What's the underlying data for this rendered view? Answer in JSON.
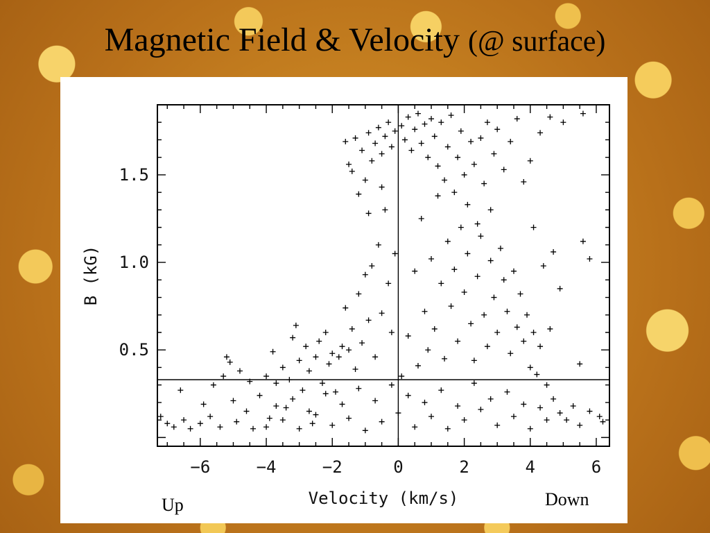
{
  "slide": {
    "title_main": "Magnetic Field & Velocity",
    "title_suffix": "(@ surface)",
    "note_up": "Up",
    "note_down": "Down"
  },
  "chart_data": {
    "type": "scatter",
    "xlabel": "Velocity (km/s)",
    "ylabel": "B (kG)",
    "xlim": [
      -7.3,
      6.4
    ],
    "ylim": [
      -0.05,
      1.9
    ],
    "x_ticks": [
      -6,
      -4,
      -2,
      0,
      2,
      4,
      6
    ],
    "y_ticks": [
      0.5,
      1.0,
      1.5
    ],
    "x_tick_labels": [
      "−6",
      "−4",
      "−2",
      "0",
      "2",
      "4",
      "6"
    ],
    "y_tick_labels": [
      "0.5",
      "1.0",
      "1.5"
    ],
    "reference_lines": {
      "vertical_x": 0,
      "horizontal_y": 0.33
    },
    "marker": "+",
    "series": [
      {
        "points": [
          [
            -7.2,
            0.12
          ],
          [
            -7.0,
            0.08
          ],
          [
            -6.8,
            0.06
          ],
          [
            -6.6,
            0.27
          ],
          [
            -6.5,
            0.1
          ],
          [
            -6.3,
            0.05
          ],
          [
            -6.0,
            0.08
          ],
          [
            -5.9,
            0.19
          ],
          [
            -5.7,
            0.12
          ],
          [
            -5.6,
            0.3
          ],
          [
            -5.4,
            0.06
          ],
          [
            -5.3,
            0.35
          ],
          [
            -5.2,
            0.46
          ],
          [
            -5.1,
            0.43
          ],
          [
            -5.0,
            0.21
          ],
          [
            -4.9,
            0.09
          ],
          [
            -4.8,
            0.38
          ],
          [
            -4.6,
            0.15
          ],
          [
            -4.5,
            0.32
          ],
          [
            -4.4,
            0.05
          ],
          [
            -4.2,
            0.24
          ],
          [
            -4.0,
            0.35
          ],
          [
            -3.9,
            0.11
          ],
          [
            -3.8,
            0.49
          ],
          [
            -3.7,
            0.31
          ],
          [
            -3.5,
            0.4
          ],
          [
            -3.4,
            0.17
          ],
          [
            -3.3,
            0.33
          ],
          [
            -3.2,
            0.57
          ],
          [
            -3.1,
            0.64
          ],
          [
            -3.0,
            0.44
          ],
          [
            -2.9,
            0.27
          ],
          [
            -2.8,
            0.52
          ],
          [
            -2.7,
            0.38
          ],
          [
            -2.6,
            0.08
          ],
          [
            -2.5,
            0.46
          ],
          [
            -2.4,
            0.55
          ],
          [
            -2.3,
            0.31
          ],
          [
            -2.2,
            0.6
          ],
          [
            -2.1,
            0.42
          ],
          [
            -2.0,
            0.48
          ],
          [
            -1.9,
            0.26
          ],
          [
            -1.8,
            0.46
          ],
          [
            -1.7,
            0.52
          ],
          [
            -1.6,
            0.74
          ],
          [
            -1.5,
            0.5
          ],
          [
            -1.4,
            0.62
          ],
          [
            -1.3,
            0.39
          ],
          [
            -1.2,
            0.82
          ],
          [
            -1.1,
            0.54
          ],
          [
            -1.0,
            0.93
          ],
          [
            -0.9,
            0.67
          ],
          [
            -0.8,
            0.98
          ],
          [
            -0.7,
            0.46
          ],
          [
            -0.6,
            1.1
          ],
          [
            -0.5,
            0.71
          ],
          [
            -0.4,
            1.3
          ],
          [
            -0.3,
            0.88
          ],
          [
            -0.2,
            0.6
          ],
          [
            -0.1,
            1.05
          ],
          [
            -1.3,
            1.71
          ],
          [
            -1.1,
            1.64
          ],
          [
            -0.9,
            1.74
          ],
          [
            -0.8,
            1.58
          ],
          [
            -0.7,
            1.68
          ],
          [
            -0.6,
            1.77
          ],
          [
            -0.5,
            1.62
          ],
          [
            -0.4,
            1.72
          ],
          [
            -0.3,
            1.8
          ],
          [
            -0.2,
            1.66
          ],
          [
            -0.1,
            1.75
          ],
          [
            -1.0,
            1.47
          ],
          [
            -1.4,
            1.52
          ],
          [
            -1.2,
            1.39
          ],
          [
            -0.9,
            1.28
          ],
          [
            -1.5,
            1.56
          ],
          [
            -1.6,
            1.69
          ],
          [
            -0.5,
            1.43
          ],
          [
            0.1,
            1.78
          ],
          [
            0.2,
            1.7
          ],
          [
            0.3,
            1.83
          ],
          [
            0.4,
            1.64
          ],
          [
            0.5,
            1.76
          ],
          [
            0.6,
            1.85
          ],
          [
            0.7,
            1.68
          ],
          [
            0.8,
            1.79
          ],
          [
            0.9,
            1.6
          ],
          [
            1.0,
            1.82
          ],
          [
            1.1,
            1.72
          ],
          [
            1.2,
            1.55
          ],
          [
            1.3,
            1.8
          ],
          [
            1.4,
            1.47
          ],
          [
            1.5,
            1.66
          ],
          [
            1.6,
            1.84
          ],
          [
            1.7,
            1.4
          ],
          [
            1.8,
            1.6
          ],
          [
            1.9,
            1.75
          ],
          [
            2.0,
            1.5
          ],
          [
            2.1,
            1.33
          ],
          [
            2.2,
            1.69
          ],
          [
            2.3,
            1.56
          ],
          [
            2.4,
            1.22
          ],
          [
            2.5,
            1.71
          ],
          [
            2.6,
            1.45
          ],
          [
            2.7,
            1.8
          ],
          [
            2.8,
            1.3
          ],
          [
            2.9,
            1.62
          ],
          [
            3.0,
            1.76
          ],
          [
            3.2,
            1.53
          ],
          [
            3.4,
            1.69
          ],
          [
            3.6,
            1.82
          ],
          [
            3.8,
            1.46
          ],
          [
            4.0,
            1.58
          ],
          [
            4.3,
            1.74
          ],
          [
            4.6,
            1.83
          ],
          [
            5.0,
            1.8
          ],
          [
            5.6,
            1.85
          ],
          [
            4.1,
            1.2
          ],
          [
            4.4,
            0.98
          ],
          [
            4.7,
            1.06
          ],
          [
            5.6,
            1.12
          ],
          [
            5.8,
            1.02
          ],
          [
            5.5,
            0.42
          ],
          [
            4.9,
            0.85
          ],
          [
            4.6,
            0.62
          ],
          [
            0.1,
            0.35
          ],
          [
            0.3,
            0.58
          ],
          [
            0.5,
            0.95
          ],
          [
            0.6,
            0.41
          ],
          [
            0.7,
            1.25
          ],
          [
            0.8,
            0.72
          ],
          [
            0.9,
            0.5
          ],
          [
            1.0,
            1.02
          ],
          [
            1.1,
            0.62
          ],
          [
            1.2,
            1.38
          ],
          [
            1.3,
            0.88
          ],
          [
            1.4,
            0.45
          ],
          [
            1.5,
            1.12
          ],
          [
            1.6,
            0.75
          ],
          [
            1.7,
            0.96
          ],
          [
            1.8,
            0.55
          ],
          [
            1.9,
            1.2
          ],
          [
            2.0,
            0.83
          ],
          [
            2.1,
            1.05
          ],
          [
            2.2,
            0.65
          ],
          [
            2.3,
            0.44
          ],
          [
            2.4,
            0.92
          ],
          [
            2.5,
            1.15
          ],
          [
            2.6,
            0.7
          ],
          [
            2.7,
            0.52
          ],
          [
            2.8,
            1.01
          ],
          [
            2.9,
            0.8
          ],
          [
            3.0,
            0.6
          ],
          [
            3.1,
            1.08
          ],
          [
            3.2,
            0.9
          ],
          [
            3.3,
            0.72
          ],
          [
            3.4,
            0.48
          ],
          [
            3.5,
            0.95
          ],
          [
            3.6,
            0.63
          ],
          [
            3.7,
            0.82
          ],
          [
            3.8,
            0.55
          ],
          [
            3.9,
            0.7
          ],
          [
            4.0,
            0.4
          ],
          [
            4.1,
            0.6
          ],
          [
            4.2,
            0.36
          ],
          [
            4.3,
            0.52
          ],
          [
            4.5,
            0.3
          ],
          [
            4.7,
            0.22
          ],
          [
            4.9,
            0.14
          ],
          [
            5.1,
            0.1
          ],
          [
            5.3,
            0.18
          ],
          [
            5.5,
            0.07
          ],
          [
            5.8,
            0.15
          ],
          [
            6.1,
            0.12
          ],
          [
            6.2,
            0.09
          ],
          [
            -4.0,
            0.06
          ],
          [
            -3.5,
            0.1
          ],
          [
            -3.0,
            0.05
          ],
          [
            -2.5,
            0.13
          ],
          [
            -2.0,
            0.07
          ],
          [
            -1.5,
            0.11
          ],
          [
            -1.0,
            0.04
          ],
          [
            -0.5,
            0.09
          ],
          [
            0.0,
            0.14
          ],
          [
            0.5,
            0.06
          ],
          [
            1.0,
            0.12
          ],
          [
            1.5,
            0.05
          ],
          [
            2.0,
            0.1
          ],
          [
            2.5,
            0.16
          ],
          [
            3.0,
            0.07
          ],
          [
            3.5,
            0.12
          ],
          [
            4.0,
            0.05
          ],
          [
            4.5,
            0.1
          ],
          [
            -3.7,
            0.18
          ],
          [
            -3.2,
            0.22
          ],
          [
            -2.7,
            0.15
          ],
          [
            -2.2,
            0.25
          ],
          [
            -1.7,
            0.19
          ],
          [
            -1.2,
            0.28
          ],
          [
            -0.7,
            0.21
          ],
          [
            -0.2,
            0.3
          ],
          [
            0.3,
            0.24
          ],
          [
            0.8,
            0.2
          ],
          [
            1.3,
            0.27
          ],
          [
            1.8,
            0.18
          ],
          [
            2.3,
            0.31
          ],
          [
            2.8,
            0.22
          ],
          [
            3.3,
            0.26
          ],
          [
            3.8,
            0.19
          ],
          [
            4.3,
            0.17
          ]
        ]
      }
    ]
  }
}
